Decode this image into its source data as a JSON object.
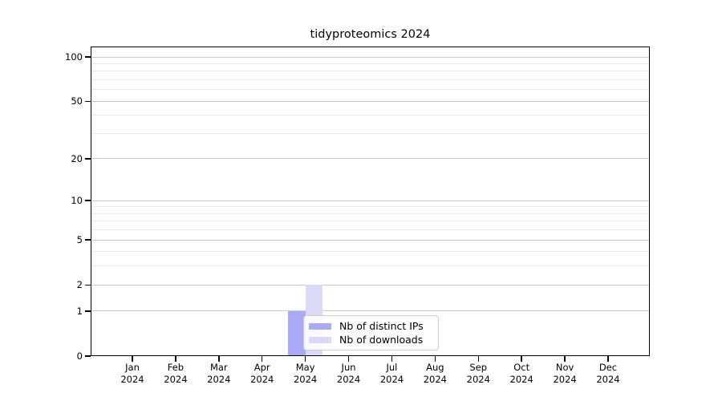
{
  "chart_data": {
    "type": "bar",
    "title": "tidyproteomics 2024",
    "categories": [
      "Jan 2024",
      "Feb 2024",
      "Mar 2024",
      "Apr 2024",
      "May 2024",
      "Jun 2024",
      "Jul 2024",
      "Aug 2024",
      "Sep 2024",
      "Oct 2024",
      "Nov 2024",
      "Dec 2024"
    ],
    "series": [
      {
        "name": "Nb of distinct IPs",
        "color": "#a9a9f6",
        "values": [
          0,
          0,
          0,
          0,
          1,
          0,
          0,
          0,
          0,
          0,
          0,
          0
        ]
      },
      {
        "name": "Nb of downloads",
        "color": "#dadaf7",
        "values": [
          0,
          0,
          0,
          0,
          2,
          0,
          0,
          0,
          0,
          0,
          0,
          0
        ]
      }
    ],
    "xlabel": "",
    "ylabel": "",
    "y_scale": "log1p",
    "y_major_ticks": [
      0,
      1,
      2,
      5,
      10,
      20,
      50,
      100
    ],
    "y_minor_gridlines": [
      3,
      4,
      6,
      7,
      8,
      9,
      30,
      40,
      60,
      70,
      80,
      90
    ],
    "ylim": [
      0,
      116
    ],
    "grid": "horizontal major and minor gridlines",
    "legend_position": "inside plot, lower center"
  },
  "colors": {
    "background": "#ffffff",
    "spine": "#000000",
    "major_grid": "#c9c9c9",
    "minor_grid": "#e9e9e9",
    "legend_border": "#cccccc",
    "bar_distinct_ips": "#a9a9f6",
    "bar_downloads": "#dadaf7"
  }
}
